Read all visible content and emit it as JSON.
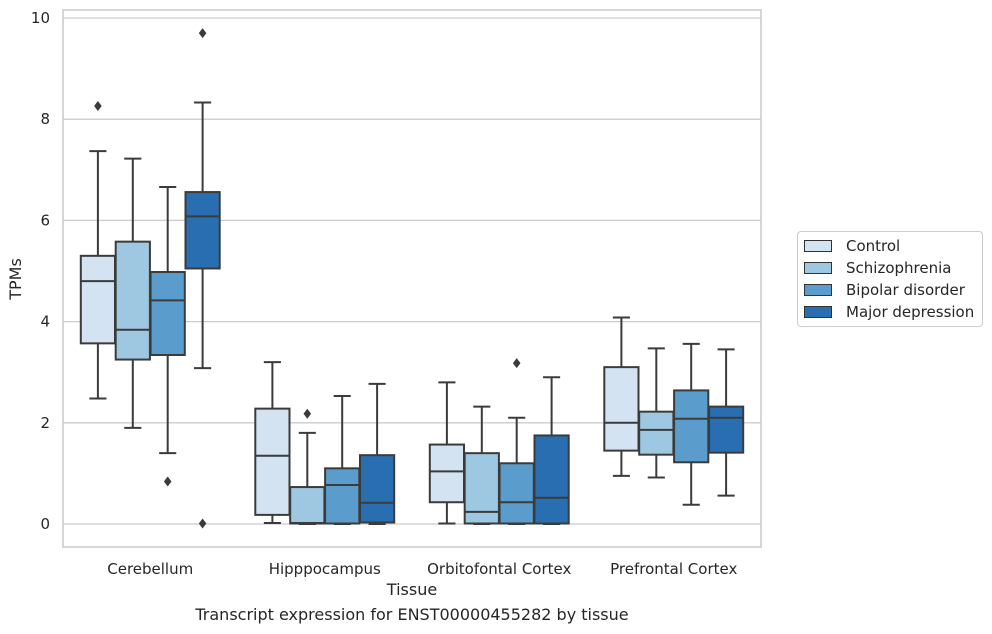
{
  "chart_data": {
    "type": "boxplot",
    "caption": "Transcript expression for ENST00000455282 by tissue",
    "xlabel": "Tissue",
    "ylabel": "TPMs",
    "ylim": [
      -0.45,
      10.2
    ],
    "yticks": [
      0,
      2,
      4,
      6,
      8,
      10
    ],
    "grid": "horizontal",
    "legend_position": "right",
    "categories": [
      "Cerebellum",
      "Hipppocampus",
      "Orbitofontal Cortex",
      "Prefrontal Cortex"
    ],
    "series": [
      {
        "name": "Control",
        "color": "#d3e3f1",
        "boxes": [
          {
            "whislo": 2.48,
            "q1": 3.57,
            "med": 4.8,
            "q3": 5.3,
            "whishi": 7.37,
            "fliers": [
              8.26
            ]
          },
          {
            "whislo": 0.02,
            "q1": 0.18,
            "med": 1.35,
            "q3": 2.28,
            "whishi": 3.2,
            "fliers": []
          },
          {
            "whislo": 0.01,
            "q1": 0.43,
            "med": 1.04,
            "q3": 1.57,
            "whishi": 2.8,
            "fliers": []
          },
          {
            "whislo": 0.95,
            "q1": 1.45,
            "med": 2.0,
            "q3": 3.1,
            "whishi": 4.08,
            "fliers": []
          }
        ]
      },
      {
        "name": "Schizophrenia",
        "color": "#9ec8e1",
        "boxes": [
          {
            "whislo": 1.9,
            "q1": 3.25,
            "med": 3.84,
            "q3": 5.58,
            "whishi": 7.22,
            "fliers": []
          },
          {
            "whislo": 0.0,
            "q1": 0.01,
            "med": 0.02,
            "q3": 0.73,
            "whishi": 1.8,
            "fliers": [
              2.18
            ]
          },
          {
            "whislo": 0.0,
            "q1": 0.01,
            "med": 0.24,
            "q3": 1.4,
            "whishi": 2.32,
            "fliers": []
          },
          {
            "whislo": 0.92,
            "q1": 1.37,
            "med": 1.86,
            "q3": 2.22,
            "whishi": 3.47,
            "fliers": []
          }
        ]
      },
      {
        "name": "Bipolar disorder",
        "color": "#5a9dcc",
        "boxes": [
          {
            "whislo": 1.4,
            "q1": 3.34,
            "med": 4.42,
            "q3": 4.98,
            "whishi": 6.66,
            "fliers": [
              0.84
            ]
          },
          {
            "whislo": 0.0,
            "q1": 0.01,
            "med": 0.77,
            "q3": 1.1,
            "whishi": 2.53,
            "fliers": []
          },
          {
            "whislo": 0.0,
            "q1": 0.01,
            "med": 0.43,
            "q3": 1.2,
            "whishi": 2.1,
            "fliers": [
              3.18
            ]
          },
          {
            "whislo": 0.38,
            "q1": 1.22,
            "med": 2.08,
            "q3": 2.64,
            "whishi": 3.56,
            "fliers": []
          }
        ]
      },
      {
        "name": "Major depression",
        "color": "#2a6eb2",
        "boxes": [
          {
            "whislo": 3.08,
            "q1": 5.05,
            "med": 6.08,
            "q3": 6.56,
            "whishi": 8.33,
            "fliers": [
              9.7,
              0.01
            ]
          },
          {
            "whislo": 0.0,
            "q1": 0.03,
            "med": 0.42,
            "q3": 1.36,
            "whishi": 2.77,
            "fliers": []
          },
          {
            "whislo": 0.0,
            "q1": 0.01,
            "med": 0.52,
            "q3": 1.75,
            "whishi": 2.9,
            "fliers": []
          },
          {
            "whislo": 0.56,
            "q1": 1.41,
            "med": 2.1,
            "q3": 2.32,
            "whishi": 3.45,
            "fliers": []
          }
        ]
      }
    ]
  }
}
